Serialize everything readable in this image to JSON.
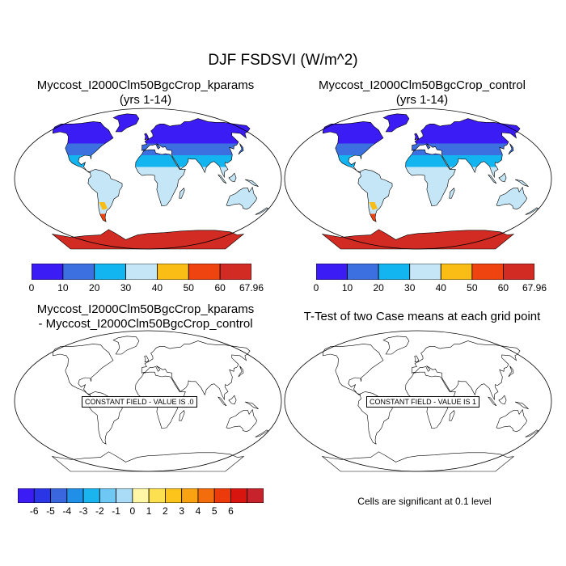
{
  "figure": {
    "title": "DJF FSDSVI (W/m^2)",
    "panels": [
      {
        "line1": "Myccost_I2000Clm50BgcCrop_kparams",
        "line2": "(yrs 1-14)"
      },
      {
        "line1": "Myccost_I2000Clm50BgcCrop_control",
        "line2": "(yrs 1-14)"
      },
      {
        "line1": "Myccost_I2000Clm50BgcCrop_kparams",
        "line2": "- Myccost_I2000Clm50BgcCrop_control",
        "box": "CONSTANT FIELD - VALUE IS .0"
      },
      {
        "line1": "T-Test of two Case means at each grid point",
        "box": "CONSTANT FIELD - VALUE IS 1"
      }
    ],
    "note": "Cells are significant at 0.1 level"
  },
  "colors": {
    "abs_levels": [
      "#3b1cf5",
      "#3c6fe0",
      "#13b5f0",
      "#c5e6f6",
      "#f9bd16",
      "#f04410",
      "#d12b23"
    ],
    "diff_levels": [
      "#3b1cf5",
      "#2a36e6",
      "#3a67de",
      "#1f8fe8",
      "#1ab5ef",
      "#6fc8f3",
      "#aadbf7",
      "#fff6a6",
      "#fde04f",
      "#fdc51c",
      "#f9a312",
      "#f46d0d",
      "#ec3a0a",
      "#d8160f",
      "#c7232c"
    ]
  },
  "chart_data": [
    {
      "type": "heatmap",
      "title": "Myccost_I2000Clm50BgcCrop_kparams (yrs 1-14)",
      "colorbar_ticks": [
        "0",
        "10",
        "20",
        "30",
        "40",
        "50",
        "60",
        "67.96"
      ],
      "levels": [
        0,
        10,
        20,
        30,
        40,
        50,
        60,
        67.96
      ]
    },
    {
      "type": "heatmap",
      "title": "Myccost_I2000Clm50BgcCrop_control (yrs 1-14)",
      "colorbar_ticks": [
        "0",
        "10",
        "20",
        "30",
        "40",
        "50",
        "60",
        "67.96"
      ],
      "levels": [
        0,
        10,
        20,
        30,
        40,
        50,
        60,
        67.96
      ]
    },
    {
      "type": "heatmap",
      "title": "Myccost_I2000Clm50BgcCrop_kparams - Myccost_I2000Clm50BgcCrop_control",
      "constant_value": 0,
      "colorbar_ticks": [
        "-6",
        "-5",
        "-4",
        "-3",
        "-2",
        "-1",
        "0",
        "1",
        "2",
        "3",
        "4",
        "5",
        "6"
      ],
      "levels": [
        -6,
        -5,
        -4,
        -3,
        -2,
        -1,
        0,
        1,
        2,
        3,
        4,
        5,
        6
      ]
    },
    {
      "type": "heatmap",
      "title": "T-Test of two Case means at each grid point",
      "constant_value": 1
    }
  ]
}
